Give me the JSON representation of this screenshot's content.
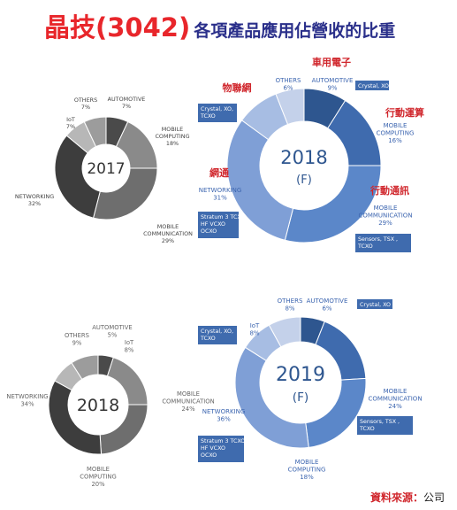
{
  "title": {
    "main": "晶技(3042)",
    "sub": "各項產品應用佔營收的比重"
  },
  "source": {
    "label": "資料來源：",
    "value": "公司"
  },
  "colors": {
    "gray_slices": [
      "#4a4a4a",
      "#8a8a8a",
      "#6e6e6e",
      "#3d3d3d",
      "#b7b7b7",
      "#9c9c9c"
    ],
    "blue_slices": [
      "#2e568f",
      "#3f6bae",
      "#5b87c9",
      "#7f9fd6",
      "#a7bde3",
      "#c4d1ea"
    ],
    "annotation_red": "#d0262c",
    "annotation_blue": "#3d66b0",
    "box_fill": "#3f6bae"
  },
  "chart_data": [
    {
      "type": "pie",
      "center_label": "2017",
      "center_sub": "",
      "categories": [
        "AUTOMOTIVE",
        "MOBILE COMPUTING",
        "MOBILE COMMUNICATION",
        "NETWORKING",
        "IoT",
        "OTHERS"
      ],
      "values": [
        7,
        18,
        29,
        32,
        7,
        7
      ],
      "labels": [
        "AUTOMOTIVE\n7%",
        "MOBILE\nCOMPUTING\n18%",
        "MOBILE\nCOMMUNICATION\n29%",
        "NETWORKING\n32%",
        "IoT\n7%",
        "OTHERS\n7%"
      ],
      "palette": "gray"
    },
    {
      "type": "pie",
      "center_label": "2018",
      "center_sub": "(F)",
      "categories": [
        "AUTOMOTIVE",
        "MOBILE COMPUTING",
        "MOBILE COMMUNICATION",
        "NETWORKING",
        "IoT",
        "OTHERS"
      ],
      "values": [
        9,
        16,
        29,
        31,
        9,
        6
      ],
      "labels": [
        "AUTOMOTIVE\n9%",
        "MOBILE\nCOMPUTING\n16%",
        "MOBILE\nCOMMUNICATION\n29%",
        "NETWORKING\n31%",
        "IoT\n9%",
        "OTHERS\n6%"
      ],
      "palette": "blue",
      "chinese_labels": [
        "車用電子",
        "行動運算",
        "行動通訊",
        "網通",
        "物聯網"
      ],
      "boxes": [
        "Crystal, XO",
        "Sensors, TSX ,\nTCXO",
        "Stratum 3 TCXO\nHF VCXO\nOCXO",
        "Crystal, XO,\nTCXO"
      ]
    },
    {
      "type": "pie",
      "center_label": "2018",
      "center_sub": "",
      "categories": [
        "AUTOMOTIVE",
        "MOBILE COMPUTING",
        "MOBILE COMMUNICATION",
        "NETWORKING",
        "IoT",
        "OTHERS"
      ],
      "values": [
        5,
        20,
        24,
        34,
        8,
        9
      ],
      "labels": [
        "AUTOMOTIVE\n5%",
        "MOBILE\nCOMPUTING\n20%",
        "MOBILE\nCOMMUNICATION\n24%",
        "NETWORKING\n34%",
        "IoT\n8%",
        "OTHERS\n9%"
      ],
      "palette": "gray"
    },
    {
      "type": "pie",
      "center_label": "2019",
      "center_sub": "(F)",
      "categories": [
        "AUTOMOTIVE",
        "MOBILE COMPUTING",
        "MOBILE COMMUNICATION",
        "NETWORKING",
        "IoT",
        "OTHERS"
      ],
      "values": [
        6,
        18,
        24,
        36,
        8,
        8
      ],
      "labels": [
        "AUTOMOTIVE\n6%",
        "MOBILE\nCOMPUTING\n18%",
        "MOBILE\nCOMMUNICATION\n24%",
        "NETWORKING\n36%",
        "IoT\n8%",
        "OTHERS\n8%"
      ],
      "palette": "blue",
      "boxes": [
        "Crystal, XO",
        "Sensors, TSX ,\nTCXO",
        "Stratum 3 TCXO\nHF VCXO\nOCXO",
        "Crystal, XO,\nTCXO"
      ]
    }
  ]
}
